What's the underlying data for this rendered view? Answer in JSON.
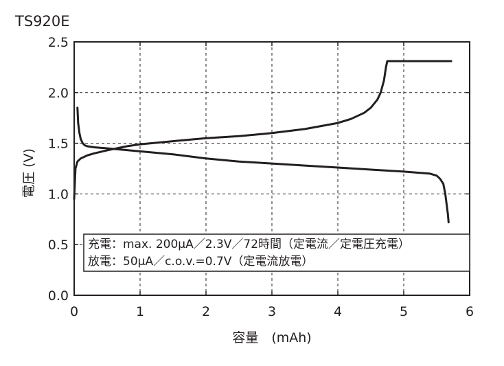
{
  "chart_data": {
    "type": "line",
    "title": "TS920E",
    "xlabel": "容量　(mAh)",
    "ylabel": "電圧 (V)",
    "xlim": [
      0,
      6
    ],
    "ylim": [
      0,
      2.5
    ],
    "x_ticks": [
      "0",
      "1",
      "2",
      "3",
      "4",
      "5",
      "6"
    ],
    "y_ticks": [
      "0.0",
      "0.5",
      "1.0",
      "1.5",
      "2.0",
      "2.5"
    ],
    "grid": true,
    "legend_lines": [
      "充電：max. 200μA／2.3V／72時間（定電流／定電圧充電）",
      "放電：50μA／c.o.v.=0.7V（定電流放電）"
    ],
    "series": [
      {
        "x": [
          0,
          0.02,
          0.05,
          0.1,
          0.2,
          0.3,
          0.5,
          0.8,
          1.0,
          1.5,
          2.0,
          2.5,
          3.0,
          3.5,
          4.0,
          4.2,
          4.4,
          4.5,
          4.6,
          4.65,
          4.7,
          4.73,
          4.75,
          4.8,
          5.0,
          5.5,
          5.72
        ],
        "y": [
          0.95,
          1.25,
          1.32,
          1.35,
          1.38,
          1.4,
          1.43,
          1.47,
          1.49,
          1.52,
          1.55,
          1.57,
          1.6,
          1.64,
          1.7,
          1.74,
          1.8,
          1.85,
          1.93,
          2.0,
          2.12,
          2.25,
          2.31,
          2.31,
          2.31,
          2.31,
          2.31
        ]
      },
      {
        "x": [
          0.05,
          0.06,
          0.08,
          0.1,
          0.13,
          0.16,
          0.2,
          0.3,
          0.5,
          1.0,
          1.5,
          2.0,
          2.5,
          3.0,
          3.5,
          4.0,
          4.5,
          5.0,
          5.2,
          5.4,
          5.5,
          5.55,
          5.6,
          5.63,
          5.65,
          5.67,
          5.68
        ],
        "y": [
          1.85,
          1.7,
          1.6,
          1.54,
          1.5,
          1.48,
          1.47,
          1.46,
          1.45,
          1.42,
          1.39,
          1.35,
          1.32,
          1.3,
          1.28,
          1.26,
          1.24,
          1.22,
          1.21,
          1.2,
          1.18,
          1.15,
          1.1,
          1.0,
          0.9,
          0.8,
          0.72
        ]
      }
    ]
  }
}
